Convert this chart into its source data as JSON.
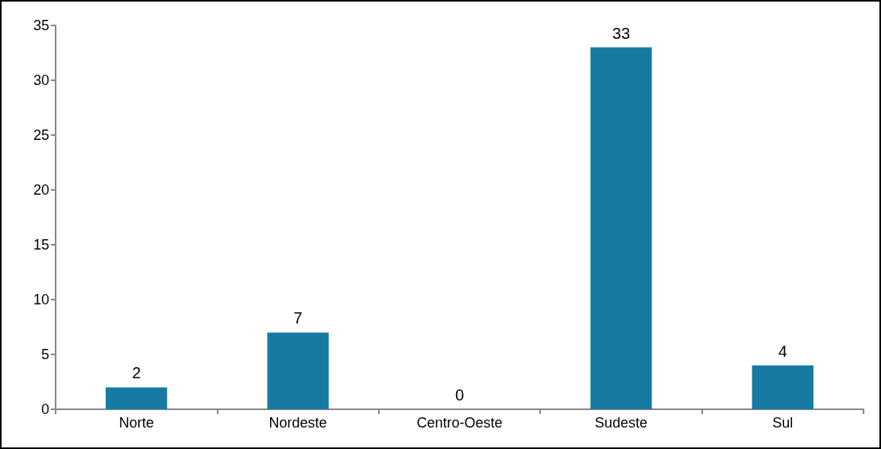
{
  "chart_data": {
    "type": "bar",
    "categories": [
      "Norte",
      "Nordeste",
      "Centro-Oeste",
      "Sudeste",
      "Sul"
    ],
    "values": [
      2,
      7,
      0,
      33,
      4
    ],
    "color": "#167aa3",
    "ylim": [
      0,
      35
    ],
    "yticks": [
      0,
      5,
      10,
      15,
      20,
      25,
      30,
      35
    ],
    "grid": false,
    "data_labels": true
  }
}
